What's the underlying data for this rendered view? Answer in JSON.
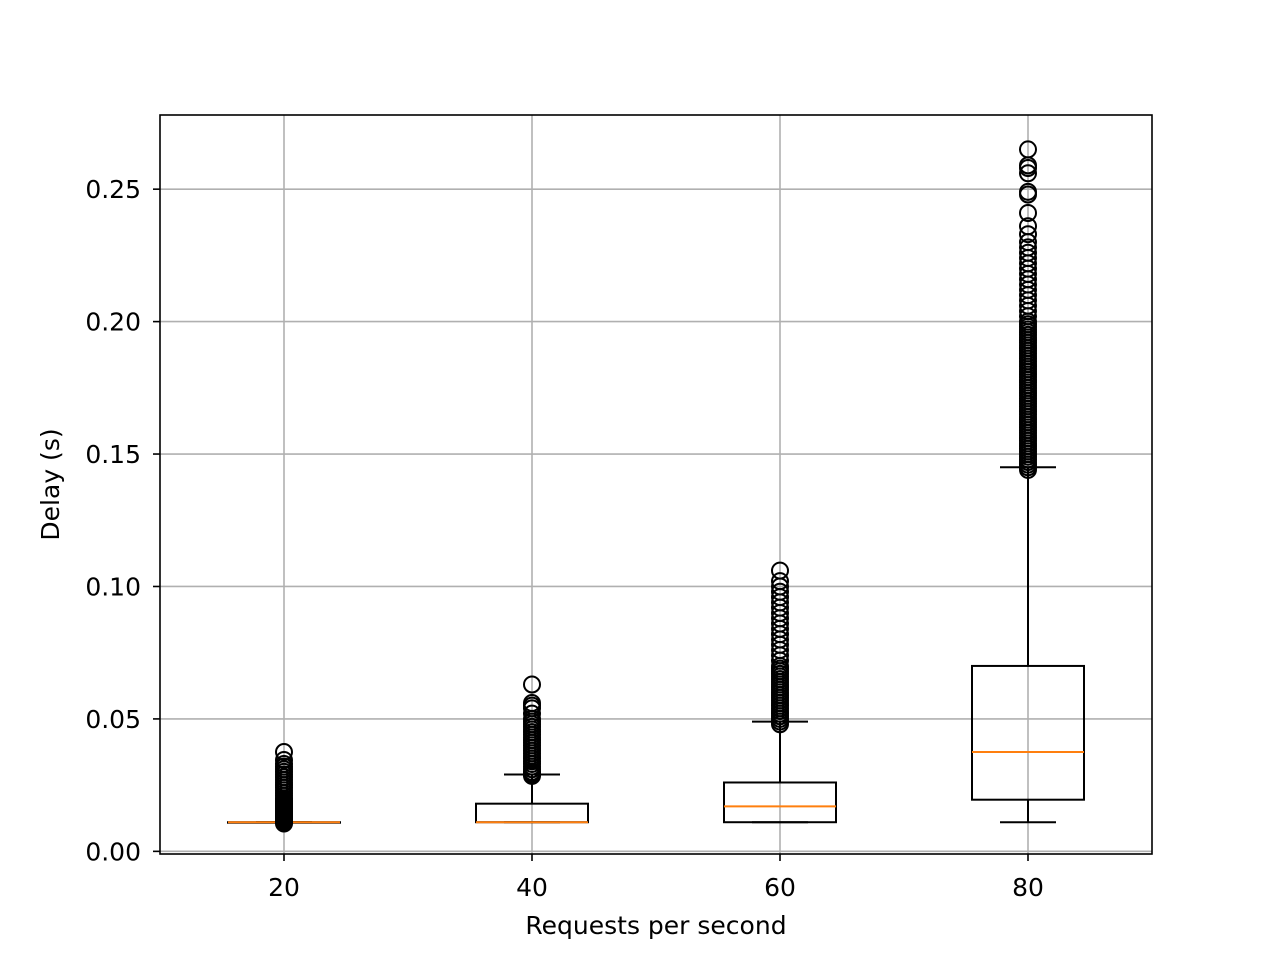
{
  "chart_data": {
    "type": "box",
    "xlabel": "Requests per second",
    "ylabel": "Delay (s)",
    "categories": [
      "20",
      "40",
      "60",
      "80"
    ],
    "x_values": [
      20,
      40,
      60,
      80
    ],
    "xlim": [
      10,
      90
    ],
    "ylim": [
      -0.001,
      0.278
    ],
    "xticks": [
      "20",
      "40",
      "60",
      "80"
    ],
    "yticks": [
      "0.00",
      "0.05",
      "0.10",
      "0.15",
      "0.20",
      "0.25"
    ],
    "ytick_values": [
      0.0,
      0.05,
      0.1,
      0.15,
      0.2,
      0.25
    ],
    "grid": true,
    "boxes": [
      {
        "category": "20",
        "whisker_low": 0.011,
        "q1": 0.011,
        "median": 0.011,
        "q3": 0.011,
        "whisker_high": 0.011,
        "outliers": [
          0.0105,
          0.011,
          0.0115,
          0.012,
          0.0125,
          0.013,
          0.0135,
          0.014,
          0.0145,
          0.015,
          0.0155,
          0.016,
          0.0165,
          0.017,
          0.0175,
          0.018,
          0.0185,
          0.019,
          0.0195,
          0.02,
          0.021,
          0.022,
          0.023,
          0.024,
          0.025,
          0.026,
          0.027,
          0.028,
          0.029,
          0.03,
          0.031,
          0.032,
          0.033,
          0.0345,
          0.0375
        ]
      },
      {
        "category": "40",
        "whisker_low": 0.011,
        "q1": 0.011,
        "median": 0.011,
        "q3": 0.018,
        "whisker_high": 0.029,
        "outliers": [
          0.0285,
          0.029,
          0.0295,
          0.03,
          0.031,
          0.032,
          0.033,
          0.034,
          0.035,
          0.036,
          0.037,
          0.038,
          0.039,
          0.04,
          0.041,
          0.042,
          0.043,
          0.044,
          0.045,
          0.046,
          0.047,
          0.048,
          0.049,
          0.05,
          0.052,
          0.054,
          0.055,
          0.056,
          0.063
        ]
      },
      {
        "category": "60",
        "whisker_low": 0.011,
        "q1": 0.011,
        "median": 0.017,
        "q3": 0.026,
        "whisker_high": 0.049,
        "outliers": [
          0.048,
          0.049,
          0.05,
          0.051,
          0.052,
          0.053,
          0.054,
          0.055,
          0.056,
          0.057,
          0.058,
          0.059,
          0.06,
          0.061,
          0.062,
          0.063,
          0.064,
          0.065,
          0.066,
          0.067,
          0.068,
          0.069,
          0.07,
          0.072,
          0.074,
          0.076,
          0.078,
          0.08,
          0.082,
          0.084,
          0.086,
          0.088,
          0.09,
          0.092,
          0.094,
          0.096,
          0.098,
          0.1,
          0.102,
          0.106
        ]
      },
      {
        "category": "80",
        "whisker_low": 0.011,
        "q1": 0.0195,
        "median": 0.0375,
        "q3": 0.07,
        "whisker_high": 0.145,
        "outliers": [
          0.144,
          0.145,
          0.146,
          0.147,
          0.148,
          0.149,
          0.15,
          0.151,
          0.152,
          0.153,
          0.154,
          0.155,
          0.156,
          0.157,
          0.158,
          0.159,
          0.16,
          0.161,
          0.162,
          0.163,
          0.164,
          0.165,
          0.166,
          0.167,
          0.168,
          0.169,
          0.17,
          0.171,
          0.172,
          0.173,
          0.174,
          0.175,
          0.176,
          0.177,
          0.178,
          0.179,
          0.18,
          0.181,
          0.182,
          0.183,
          0.184,
          0.185,
          0.186,
          0.187,
          0.188,
          0.189,
          0.19,
          0.191,
          0.192,
          0.193,
          0.194,
          0.195,
          0.196,
          0.197,
          0.198,
          0.199,
          0.2,
          0.202,
          0.204,
          0.206,
          0.208,
          0.21,
          0.212,
          0.214,
          0.216,
          0.218,
          0.22,
          0.222,
          0.224,
          0.226,
          0.228,
          0.23,
          0.233,
          0.236,
          0.241,
          0.248,
          0.249,
          0.256,
          0.258,
          0.259,
          0.265
        ]
      }
    ],
    "colors": {
      "box": "#000000",
      "median": "#ff7f0e",
      "grid": "#b0b0b0",
      "flier": "#000000"
    }
  }
}
